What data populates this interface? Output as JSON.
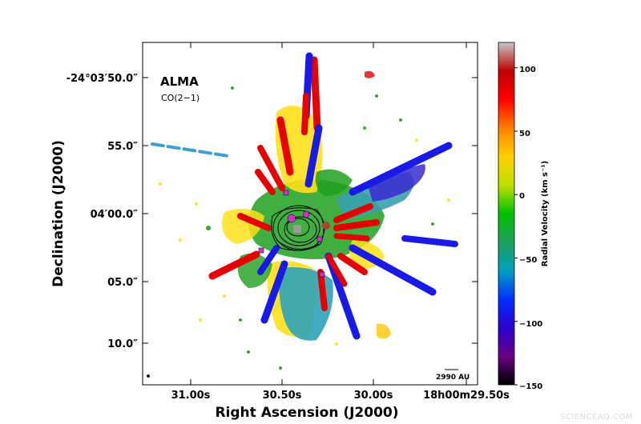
{
  "figure": {
    "telescope_label": "ALMA",
    "line_label": "CO(2−1)",
    "x_axis_title": "Right Ascension (J2000)",
    "y_axis_title": "Declination (J2000)",
    "x_ticks": [
      "31.00s",
      "30.50s",
      "30.00s",
      "18h00m29.50s"
    ],
    "y_ticks": [
      "-24°03′50.0″",
      "55.0″",
      "04′00.0″",
      "05.0″",
      "10.0″"
    ],
    "scale_bar_label": "2990 AU"
  },
  "colorbar": {
    "title": "Radial Velocity (km s⁻¹)",
    "ticks": [
      "100",
      "50",
      "0",
      "−50",
      "−100",
      "−150"
    ],
    "range": [
      -150,
      120
    ],
    "stops": [
      "#000000",
      "#6a0080",
      "#2a00d0",
      "#0030ff",
      "#00a0c0",
      "#20a060",
      "#00c000",
      "#c0e000",
      "#ffd000",
      "#ff8000",
      "#ff0000",
      "#c00000",
      "#c8c8c8"
    ]
  },
  "colors": {
    "red": "#e60000",
    "blue": "#1a1ae6",
    "yellow": "#ffe01a",
    "green": "#1fa01f",
    "teal": "#3aa0b0",
    "marker": "#cc33cc",
    "source": "#999999"
  },
  "watermark": "SCIENCEAQ.COM"
}
